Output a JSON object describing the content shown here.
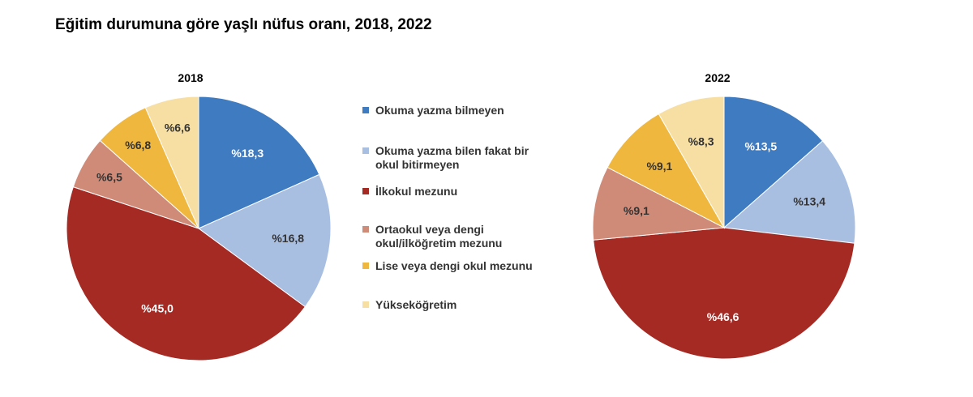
{
  "title": "Eğitim durumuna göre yaşlı nüfus oranı, 2018, 2022",
  "chart_data": [
    {
      "type": "pie",
      "title": "2018",
      "categories": [
        "Okuma yazma bilmeyen",
        "Okuma yazma bilen fakat bir okul bitirmeyen",
        "İlkokul mezunu",
        "Ortaokul veya dengi okul/ilköğretim mezunu",
        "Lise veya dengi okul mezunu",
        "Yükseköğretim"
      ],
      "values": [
        18.3,
        16.8,
        45.0,
        6.5,
        6.8,
        6.6
      ],
      "labels": [
        "%18,3",
        "%16,8",
        "%45,0",
        "%6,5",
        "%6,8",
        "%6,6"
      ]
    },
    {
      "type": "pie",
      "title": "2022",
      "categories": [
        "Okuma yazma bilmeyen",
        "Okuma yazma bilen fakat bir okul bitirmeyen",
        "İlkokul mezunu",
        "Ortaokul veya dengi okul/ilköğretim mezunu",
        "Lise veya dengi okul mezunu",
        "Yükseköğretim"
      ],
      "values": [
        13.5,
        13.4,
        46.6,
        9.1,
        9.1,
        8.3
      ],
      "labels": [
        "%13,5",
        "%13,4",
        "%46,6",
        "%9,1",
        "%9,1",
        "%8,3"
      ]
    }
  ],
  "legend": {
    "placement": "center",
    "items": [
      {
        "line1": "Okuma yazma bilmeyen",
        "line2": "",
        "color": "#3f7bc1"
      },
      {
        "line1": "Okuma yazma bilen fakat bir",
        "line2": "okul bitirmeyen",
        "color": "#a9bfe2"
      },
      {
        "line1": "İlkokul mezunu",
        "line2": "",
        "color": "#a52a24"
      },
      {
        "line1": "Ortaokul veya dengi",
        "line2": "okul/ilköğretim mezunu",
        "color": "#d08b78"
      },
      {
        "line1": "Lise veya dengi okul mezunu",
        "line2": "",
        "color": "#f0b73e"
      },
      {
        "line1": "Yükseköğretim",
        "line2": "",
        "color": "#f7dfa4"
      }
    ]
  },
  "label_colors": [
    "#ffffff",
    "#333333",
    "#ffffff",
    "#333333",
    "#333333",
    "#333333"
  ]
}
